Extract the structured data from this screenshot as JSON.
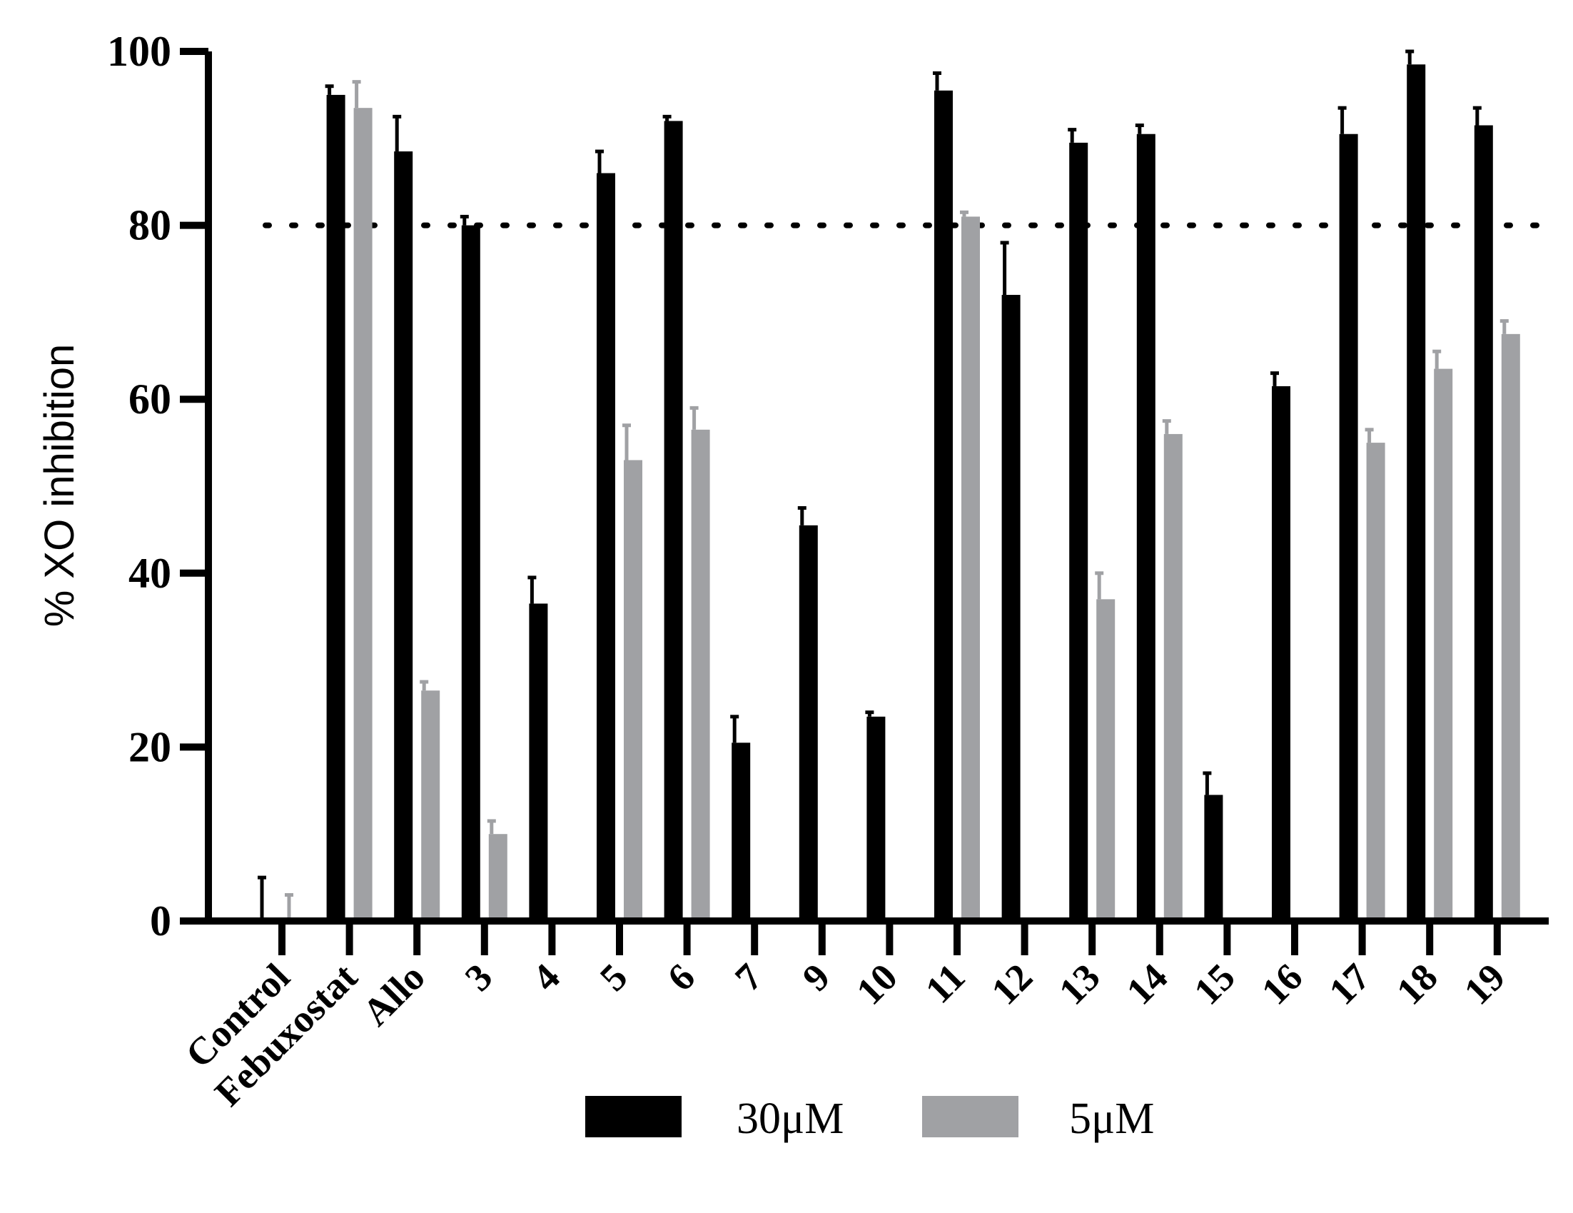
{
  "chart_data": {
    "type": "bar",
    "title": "",
    "xlabel": "",
    "ylabel": "% XO inhibition",
    "ylim": [
      0,
      100
    ],
    "yticks": [
      0,
      20,
      40,
      60,
      80,
      100
    ],
    "reference_line": {
      "y": 80,
      "style": "dotted"
    },
    "legend_position": "bottom",
    "categories": [
      "Control",
      "Febuxostat",
      "Allo",
      "3",
      "4",
      "5",
      "6",
      "7",
      "9",
      "10",
      "11",
      "12",
      "13",
      "14",
      "15",
      "16",
      "17",
      "18",
      "19"
    ],
    "series": [
      {
        "name": "30μM",
        "color": "#000000",
        "values": [
          0,
          95,
          88.5,
          80,
          36.5,
          86,
          92,
          20.5,
          45.5,
          23.5,
          95.5,
          72,
          89.5,
          90.5,
          14.5,
          61.5,
          90.5,
          98.5,
          91.5
        ],
        "errors": [
          5,
          1,
          4,
          1,
          3,
          2.5,
          0.5,
          3,
          2,
          0.5,
          2,
          6,
          1.5,
          1,
          2.5,
          1.5,
          3,
          1.5,
          2
        ]
      },
      {
        "name": "5μM",
        "color": "#a0a1a4",
        "values": [
          0,
          93.5,
          26.5,
          10,
          null,
          53,
          56.5,
          null,
          null,
          null,
          81,
          null,
          37,
          56,
          null,
          null,
          55,
          63.5,
          67.5
        ],
        "errors": [
          3,
          3,
          1,
          1.5,
          null,
          4,
          2.5,
          null,
          null,
          null,
          0.5,
          null,
          3,
          1.5,
          null,
          null,
          1.5,
          2,
          1.5
        ]
      }
    ]
  }
}
